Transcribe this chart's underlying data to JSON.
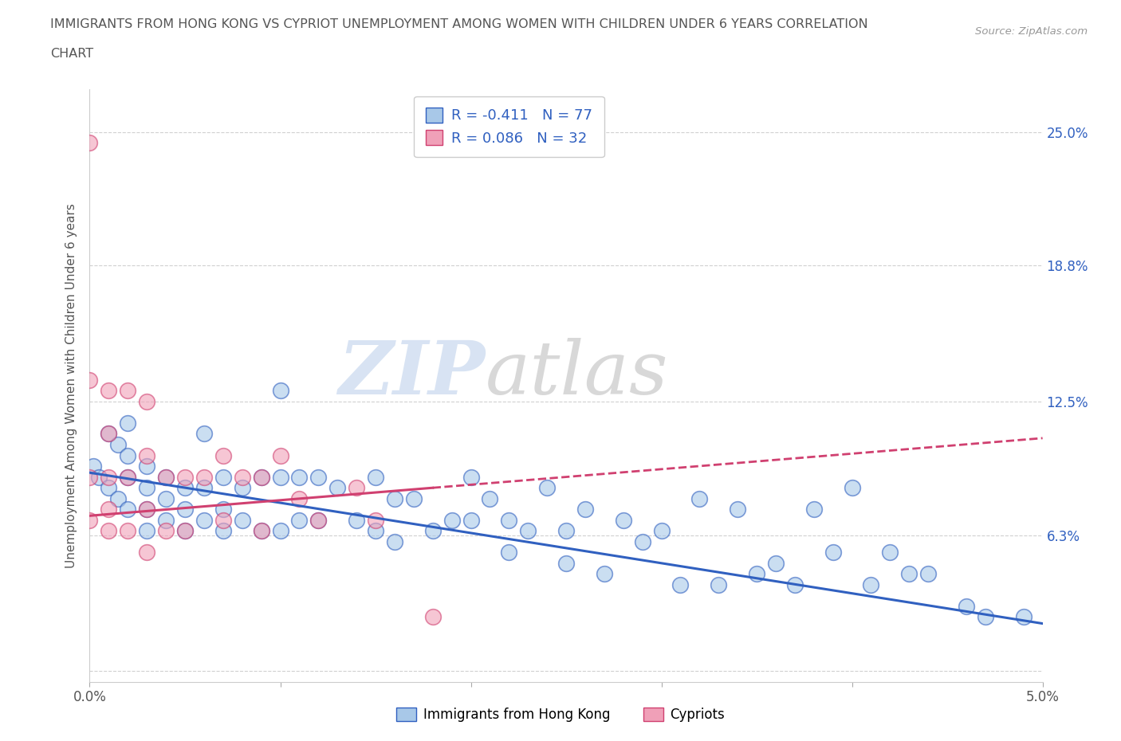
{
  "title_line1": "IMMIGRANTS FROM HONG KONG VS CYPRIOT UNEMPLOYMENT AMONG WOMEN WITH CHILDREN UNDER 6 YEARS CORRELATION",
  "title_line2": "CHART",
  "source": "Source: ZipAtlas.com",
  "ylabel_label": "Unemployment Among Women with Children Under 6 years",
  "xlim": [
    0.0,
    0.05
  ],
  "ylim": [
    -0.005,
    0.27
  ],
  "ytick_values": [
    0.0,
    0.063,
    0.125,
    0.188,
    0.25
  ],
  "ytick_labels": [
    "",
    "6.3%",
    "12.5%",
    "18.8%",
    "25.0%"
  ],
  "watermark_zip": "ZIP",
  "watermark_atlas": "atlas",
  "series1_color": "#a8c8e8",
  "series2_color": "#f0a0b8",
  "trend1_color": "#3060c0",
  "trend2_color": "#d04070",
  "R1": -0.411,
  "N1": 77,
  "R2": 0.086,
  "N2": 32,
  "hk_x": [
    0.0002,
    0.0005,
    0.001,
    0.001,
    0.0015,
    0.0015,
    0.002,
    0.002,
    0.002,
    0.002,
    0.003,
    0.003,
    0.003,
    0.003,
    0.004,
    0.004,
    0.004,
    0.005,
    0.005,
    0.005,
    0.006,
    0.006,
    0.006,
    0.007,
    0.007,
    0.007,
    0.008,
    0.008,
    0.009,
    0.009,
    0.01,
    0.01,
    0.01,
    0.011,
    0.011,
    0.012,
    0.012,
    0.013,
    0.014,
    0.015,
    0.015,
    0.016,
    0.016,
    0.017,
    0.018,
    0.019,
    0.02,
    0.02,
    0.021,
    0.022,
    0.022,
    0.023,
    0.024,
    0.025,
    0.025,
    0.026,
    0.027,
    0.028,
    0.029,
    0.03,
    0.031,
    0.032,
    0.033,
    0.034,
    0.035,
    0.036,
    0.037,
    0.038,
    0.039,
    0.04,
    0.041,
    0.042,
    0.043,
    0.044,
    0.046,
    0.047,
    0.049
  ],
  "hk_y": [
    0.095,
    0.09,
    0.11,
    0.085,
    0.105,
    0.08,
    0.115,
    0.1,
    0.09,
    0.075,
    0.095,
    0.085,
    0.075,
    0.065,
    0.09,
    0.08,
    0.07,
    0.085,
    0.075,
    0.065,
    0.11,
    0.085,
    0.07,
    0.09,
    0.075,
    0.065,
    0.085,
    0.07,
    0.09,
    0.065,
    0.13,
    0.09,
    0.065,
    0.09,
    0.07,
    0.09,
    0.07,
    0.085,
    0.07,
    0.09,
    0.065,
    0.08,
    0.06,
    0.08,
    0.065,
    0.07,
    0.09,
    0.07,
    0.08,
    0.07,
    0.055,
    0.065,
    0.085,
    0.065,
    0.05,
    0.075,
    0.045,
    0.07,
    0.06,
    0.065,
    0.04,
    0.08,
    0.04,
    0.075,
    0.045,
    0.05,
    0.04,
    0.075,
    0.055,
    0.085,
    0.04,
    0.055,
    0.045,
    0.045,
    0.03,
    0.025,
    0.025
  ],
  "cy_x": [
    0.0,
    0.0,
    0.0,
    0.0,
    0.001,
    0.001,
    0.001,
    0.001,
    0.001,
    0.002,
    0.002,
    0.002,
    0.003,
    0.003,
    0.003,
    0.003,
    0.004,
    0.004,
    0.005,
    0.005,
    0.006,
    0.007,
    0.007,
    0.008,
    0.009,
    0.009,
    0.01,
    0.011,
    0.012,
    0.014,
    0.015,
    0.018
  ],
  "cy_y": [
    0.245,
    0.135,
    0.09,
    0.07,
    0.13,
    0.11,
    0.09,
    0.075,
    0.065,
    0.13,
    0.09,
    0.065,
    0.125,
    0.1,
    0.075,
    0.055,
    0.09,
    0.065,
    0.09,
    0.065,
    0.09,
    0.1,
    0.07,
    0.09,
    0.09,
    0.065,
    0.1,
    0.08,
    0.07,
    0.085,
    0.07,
    0.025
  ],
  "trend1_x0": 0.0,
  "trend1_y0": 0.092,
  "trend1_x1": 0.05,
  "trend1_y1": 0.022,
  "trend2_x0": 0.0,
  "trend2_y0": 0.072,
  "trend2_x1": 0.05,
  "trend2_y1": 0.108,
  "grid_color": "#d0d0d0",
  "background_color": "#ffffff"
}
